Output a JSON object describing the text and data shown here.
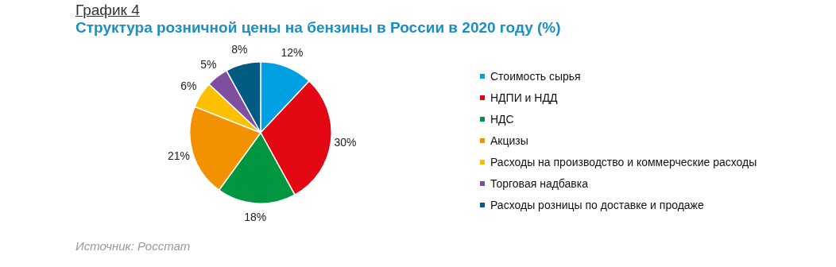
{
  "chart_data": {
    "type": "pie",
    "title": "График 4",
    "subtitle": "Структура розничной цены на бензины в России в 2020 году (%)",
    "categories": [
      "Стоимость сырья",
      "НДПИ и НДД",
      "НДС",
      "Акцизы",
      "Расходы на производство и коммерческие расходы",
      "Торговая надбавка",
      "Расходы розницы по доставке и продаже"
    ],
    "values": [
      12,
      30,
      18,
      21,
      6,
      5,
      8
    ],
    "value_labels": [
      "12%",
      "30%",
      "18%",
      "21%",
      "6%",
      "5%",
      "8%"
    ],
    "colors": [
      "#00a0e3",
      "#e30613",
      "#009640",
      "#f39200",
      "#fcc000",
      "#7f4f9f",
      "#005b82"
    ],
    "legend": "right",
    "annotations": [
      "Источник: Росстат"
    ]
  }
}
